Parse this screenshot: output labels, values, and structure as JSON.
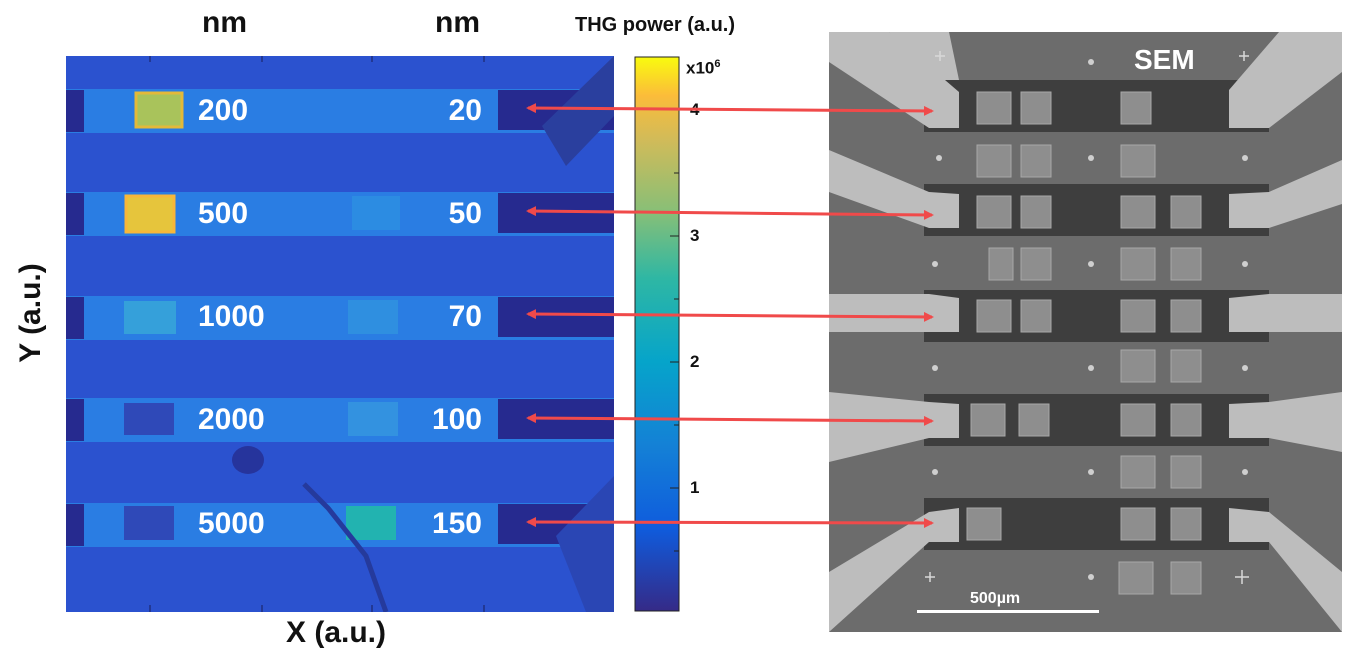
{
  "headers": {
    "left_unit": "nm",
    "right_unit": "nm"
  },
  "colorbar": {
    "title": "THG power (a.u.)",
    "exponent_base": "x10",
    "exponent_power": "6",
    "ticks": [
      "4",
      "3",
      "2",
      "1"
    ],
    "tick_values": [
      4,
      3,
      2,
      1
    ],
    "range": [
      0,
      4.4
    ]
  },
  "axes": {
    "xlabel": "X (a.u.)",
    "ylabel": "Y (a.u.)"
  },
  "rows": [
    {
      "left": "200",
      "right": "20"
    },
    {
      "left": "500",
      "right": "50"
    },
    {
      "left": "1000",
      "right": "70"
    },
    {
      "left": "2000",
      "right": "100"
    },
    {
      "left": "5000",
      "right": "150"
    }
  ],
  "sem": {
    "label": "SEM",
    "scalebar": "500µm"
  },
  "colors": {
    "map_background": "#2b52cf",
    "stripe": "#2a7de3",
    "pad_dark": "#262a8f",
    "arrow": "#f04a4a"
  }
}
